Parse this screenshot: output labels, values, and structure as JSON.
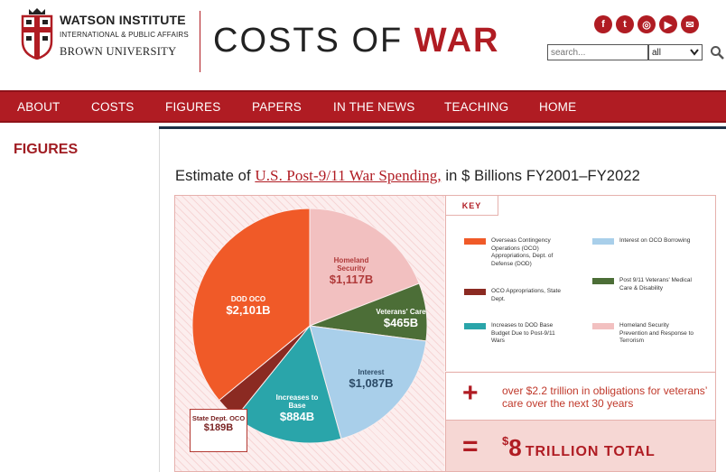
{
  "header": {
    "institute_title": "WATSON INSTITUTE",
    "institute_subtitle": "INTERNATIONAL & PUBLIC AFFAIRS",
    "university": "BROWN UNIVERSITY",
    "site_title_main": "COSTS OF",
    "site_title_accent": "WAR",
    "social": [
      {
        "icon": "facebook-icon",
        "glyph": "f"
      },
      {
        "icon": "twitter-icon",
        "glyph": "t"
      },
      {
        "icon": "instagram-icon",
        "glyph": "◎"
      },
      {
        "icon": "youtube-icon",
        "glyph": "▶"
      },
      {
        "icon": "email-icon",
        "glyph": "✉"
      }
    ],
    "search_placeholder": "search...",
    "search_scope": "all"
  },
  "nav": {
    "items": [
      "ABOUT",
      "COSTS",
      "FIGURES",
      "PAPERS",
      "IN THE NEWS",
      "TEACHING",
      "HOME"
    ]
  },
  "sidebar": {
    "title": "FIGURES"
  },
  "figure": {
    "title_before": "Estimate of ",
    "title_link": "U.S. Post-9/11 War Spending,",
    "title_after": " in $ Billions FY2001–FY2022",
    "key_label": "KEY",
    "plus_sign": "+",
    "plus_text": "over $2.2 trillion in obligations for veterans’ care over the next 30 years",
    "equals_sign": "=",
    "total_dollar": "$",
    "total_number": "8",
    "total_suffix": "TRILLION TOTAL"
  },
  "colors": {
    "brand_red": "#b01c23",
    "dod_oco": "#f05a28",
    "oco_state": "#8b2a22",
    "base_budget": "#2aa5aa",
    "interest": "#a9cfea",
    "veterans": "#4c6e37",
    "homeland": "#f2c0c0"
  },
  "chart_data": {
    "type": "pie",
    "title": "Estimate of U.S. Post-9/11 War Spending, in $ Billions FY2001–FY2022",
    "slices": [
      {
        "label": "Homeland Security",
        "value": 1117,
        "display": "$1,117B",
        "color": "#f2c0c0"
      },
      {
        "label": "Veterans' Care",
        "value": 465,
        "display": "$465B",
        "color": "#4c6e37"
      },
      {
        "label": "Interest",
        "value": 1087,
        "display": "$1,087B",
        "color": "#a9cfea"
      },
      {
        "label": "Increases to Base",
        "value": 884,
        "display": "$884B",
        "color": "#2aa5aa"
      },
      {
        "label": "State Dept. OCO",
        "value": 189,
        "display": "$189B",
        "color": "#8b2a22"
      },
      {
        "label": "DOD OCO",
        "value": 2101,
        "display": "$2,101B",
        "color": "#f05a28"
      }
    ],
    "legend": [
      {
        "text": "Overseas Contingency Operations (OCO) Appropriations, Dept. of Defense (DOD)",
        "color": "#f05a28"
      },
      {
        "text": "Interest on OCO Borrowing",
        "color": "#a9cfea"
      },
      {
        "text": "OCO Appropriations, State Dept.",
        "color": "#8b2a22"
      },
      {
        "text": "Post 9/11 Veterans' Medical Care & Disability",
        "color": "#4c6e37"
      },
      {
        "text": "Increases to DOD Base Budget Due to Post-9/11 Wars",
        "color": "#2aa5aa"
      },
      {
        "text": "Homeland Security Prevention and Response to Terrorism",
        "color": "#f2c0c0"
      }
    ],
    "labels": {
      "homeland_name": "Homeland Security",
      "homeland_value": "$1,117B",
      "veterans_name": "Veterans' Care",
      "veterans_value": "$465B",
      "interest_name": "Interest",
      "interest_value": "$1,087B",
      "base_name": "Increases to Base",
      "base_value": "$884B",
      "state_name": "State Dept. OCO",
      "state_value": "$189B",
      "dod_name": "DOD OCO",
      "dod_value": "$2,101B"
    }
  }
}
